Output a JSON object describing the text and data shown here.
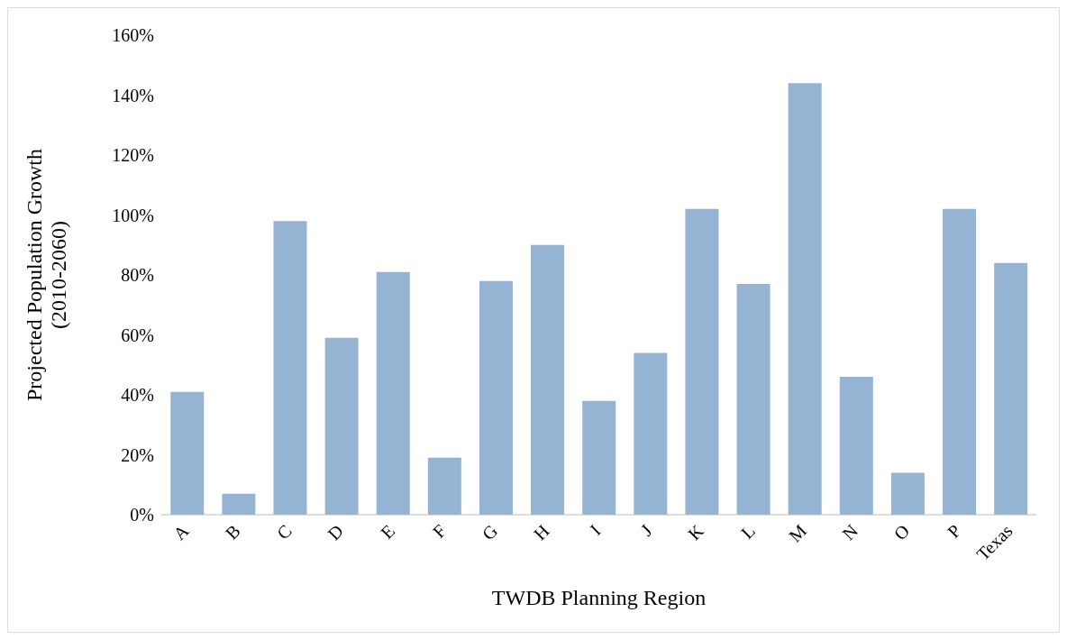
{
  "chart_data": {
    "type": "bar",
    "xlabel": "TWDB Planning Region",
    "ylabel": "Projected Population Growth\n(2010-2060)",
    "categories": [
      "A",
      "B",
      "C",
      "D",
      "E",
      "F",
      "G",
      "H",
      "I",
      "J",
      "K",
      "L",
      "M",
      "N",
      "O",
      "P",
      "Texas"
    ],
    "values": [
      41,
      7,
      98,
      59,
      81,
      19,
      78,
      90,
      38,
      54,
      102,
      77,
      144,
      46,
      14,
      102,
      84
    ],
    "color": "#95b3d3",
    "ylim": [
      0,
      160
    ],
    "yticks": [
      {
        "value": 0,
        "label": "0%"
      },
      {
        "value": 20,
        "label": "20%"
      },
      {
        "value": 40,
        "label": "40%"
      },
      {
        "value": 60,
        "label": "60%"
      },
      {
        "value": 80,
        "label": "80%"
      },
      {
        "value": 100,
        "label": "100%"
      },
      {
        "value": 120,
        "label": "120%"
      },
      {
        "value": 140,
        "label": "140%"
      },
      {
        "value": 160,
        "label": "160%"
      }
    ],
    "grid": false,
    "legend": false
  }
}
